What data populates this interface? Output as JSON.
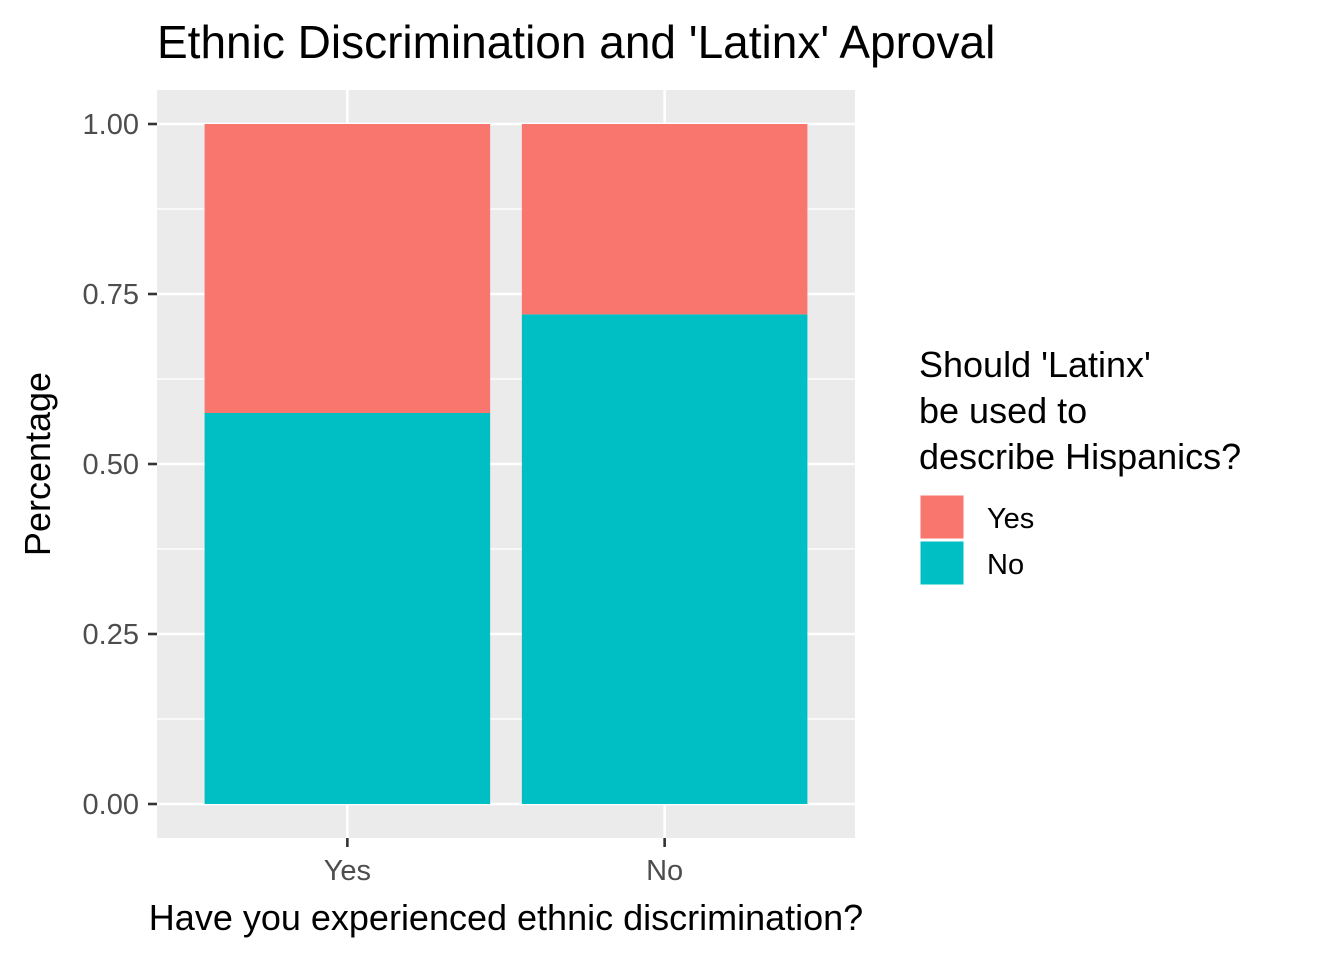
{
  "chart_data": {
    "type": "bar",
    "stacked": true,
    "title": "Ethnic Discrimination and 'Latinx' Aproval",
    "xlabel": "Have you experienced ethnic discrimination?",
    "ylabel": "Percentage",
    "categories": [
      "Yes",
      "No"
    ],
    "series": [
      {
        "name": "Yes",
        "color": "#F8766D",
        "values": [
          0.425,
          0.28
        ]
      },
      {
        "name": "No",
        "color": "#00BFC4",
        "values": [
          0.575,
          0.72
        ]
      }
    ],
    "ylim": [
      -0.05,
      1.05
    ],
    "yticks": [
      0.0,
      0.25,
      0.5,
      0.75,
      1.0
    ],
    "ytick_labels": [
      "0.00",
      "0.25",
      "0.50",
      "0.75",
      "1.00"
    ],
    "grid": true,
    "legend": {
      "title_lines": [
        "Should 'Latinx'",
        "be used to",
        "describe Hispanics?"
      ],
      "placement": "right"
    },
    "colors": {
      "panel_background": "#EBEBEB",
      "gridline": "#FFFFFF",
      "tick_text": "#4D4D4D"
    }
  }
}
